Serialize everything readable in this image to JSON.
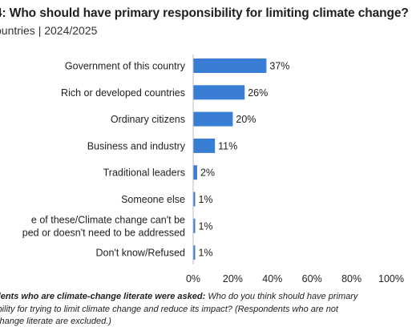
{
  "header": {
    "title": "4: Who should have primary responsibility for limiting climate change?",
    "subtitle": "ountries  |  2024/2025"
  },
  "chart_data": {
    "type": "bar",
    "orientation": "horizontal",
    "title": "4: Who should have primary responsibility for limiting climate change?",
    "categories": [
      "Government of this country",
      "Rich or developed countries",
      "Ordinary citizens",
      "Business and industry",
      "Traditional leaders",
      "Someone else",
      "e of these/Climate change can't be ped or doesn't need to be addressed",
      "Don't know/Refused"
    ],
    "category_lines": [
      [
        "Government of this country"
      ],
      [
        "Rich or developed countries"
      ],
      [
        "Ordinary citizens"
      ],
      [
        "Business and industry"
      ],
      [
        "Traditional leaders"
      ],
      [
        "Someone else"
      ],
      [
        "e of these/Climate change can't be",
        "ped or doesn't need to be addressed"
      ],
      [
        "Don't know/Refused"
      ]
    ],
    "values": [
      37,
      26,
      20,
      11,
      2,
      1,
      1,
      1
    ],
    "value_labels": [
      "37%",
      "26%",
      "20%",
      "11%",
      "2%",
      "1%",
      "1%",
      "1%"
    ],
    "xlim": [
      0,
      100
    ],
    "xticks": [
      "0%",
      "20%",
      "40%",
      "60%",
      "80%",
      "100%"
    ],
    "bar_color": "#3a7dd5",
    "grid": false
  },
  "footnote": {
    "lead": "dents who are climate-change literate were asked:",
    "line1_rest": " Who do you think should have primary",
    "line2": "ibility for trying to limit climate change and reduce its impact? (Respondents who are not",
    "line3": "change literate are excluded.)"
  }
}
